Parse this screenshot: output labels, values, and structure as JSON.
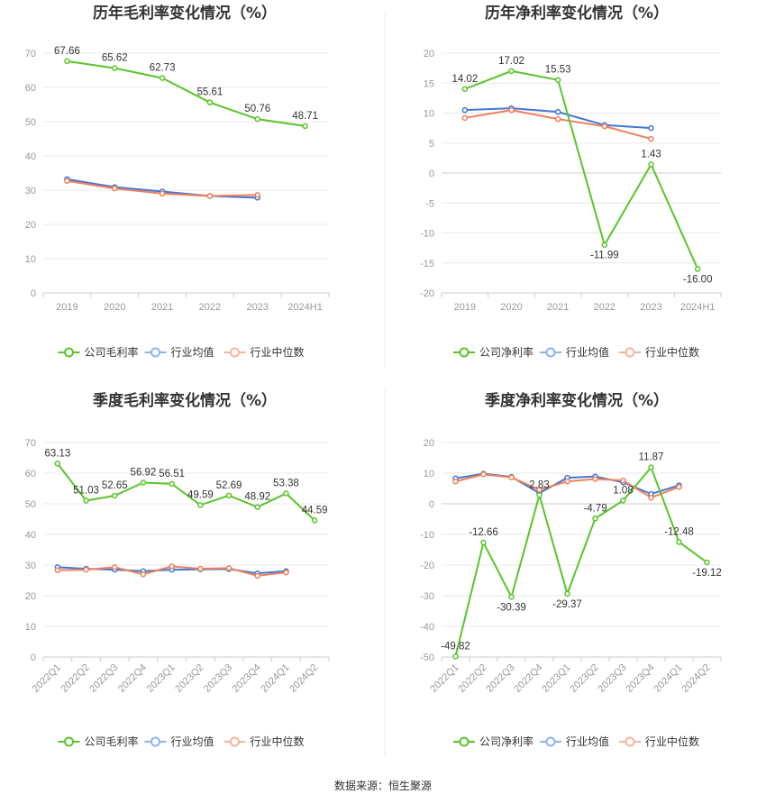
{
  "source": "数据来源：恒生聚源",
  "colors": {
    "company": "#5ac52a",
    "avg": "#4476d6",
    "median": "#f0805a",
    "legend_avg": "#8fb2ef",
    "legend_median": "#f7b49a"
  },
  "chart_data": [
    {
      "type": "line",
      "title": "历年毛利率变化情况（%）",
      "categories": [
        "2019",
        "2020",
        "2021",
        "2022",
        "2023",
        "2024H1"
      ],
      "ylim": [
        0,
        70
      ],
      "yticks": [
        0,
        10,
        20,
        30,
        40,
        50,
        60,
        70
      ],
      "grid": true,
      "legend_position": "bottom",
      "rotate_x": false,
      "series": [
        {
          "name": "公司毛利率",
          "role": "company",
          "values": [
            67.66,
            65.62,
            62.73,
            55.61,
            50.76,
            48.71
          ],
          "labels": [
            "67.66",
            "65.62",
            "62.73",
            "55.61",
            "50.76",
            "48.71"
          ]
        },
        {
          "name": "行业均值",
          "role": "avg",
          "values": [
            33.2,
            30.9,
            29.6,
            28.3,
            27.8,
            null
          ]
        },
        {
          "name": "行业中位数",
          "role": "median",
          "values": [
            32.7,
            30.5,
            29.0,
            28.3,
            28.6,
            null
          ]
        }
      ]
    },
    {
      "type": "line",
      "title": "历年净利率变化情况（%）",
      "categories": [
        "2019",
        "2020",
        "2021",
        "2022",
        "2023",
        "2024H1"
      ],
      "ylim": [
        -20,
        20
      ],
      "yticks": [
        -20,
        -15,
        -10,
        -5,
        0,
        5,
        10,
        15,
        20
      ],
      "grid": true,
      "legend_position": "bottom",
      "rotate_x": false,
      "series": [
        {
          "name": "公司净利率",
          "role": "company",
          "values": [
            14.02,
            17.02,
            15.53,
            -11.99,
            1.43,
            -16.0
          ],
          "labels": [
            "14.02",
            "17.02",
            "15.53",
            "-11.99",
            "1.43",
            "-16.00"
          ]
        },
        {
          "name": "行业均值",
          "role": "avg",
          "values": [
            10.5,
            10.8,
            10.2,
            8.0,
            7.5,
            null
          ]
        },
        {
          "name": "行业中位数",
          "role": "median",
          "values": [
            9.2,
            10.5,
            9.0,
            7.8,
            5.7,
            null
          ]
        }
      ]
    },
    {
      "type": "line",
      "title": "季度毛利率变化情况（%）",
      "categories": [
        "2022Q1",
        "2022Q2",
        "2022Q3",
        "2022Q4",
        "2023Q1",
        "2023Q2",
        "2023Q3",
        "2023Q4",
        "2024Q1",
        "2024Q2"
      ],
      "ylim": [
        0,
        70
      ],
      "yticks": [
        0,
        10,
        20,
        30,
        40,
        50,
        60,
        70
      ],
      "grid": true,
      "legend_position": "bottom",
      "rotate_x": true,
      "series": [
        {
          "name": "公司毛利率",
          "role": "company",
          "values": [
            63.13,
            51.03,
            52.65,
            56.92,
            56.51,
            49.59,
            52.69,
            48.92,
            53.38,
            44.59
          ],
          "labels": [
            "63.13",
            "51.03",
            "52.65",
            "56.92",
            "56.51",
            "49.59",
            "52.69",
            "48.92",
            "53.38",
            "44.59"
          ]
        },
        {
          "name": "行业均值",
          "role": "avg",
          "values": [
            29.3,
            28.8,
            28.5,
            28.0,
            28.5,
            28.6,
            28.7,
            27.3,
            28.0,
            null
          ]
        },
        {
          "name": "行业中位数",
          "role": "median",
          "values": [
            28.3,
            28.5,
            29.3,
            27.0,
            29.6,
            28.8,
            29.0,
            26.5,
            27.6,
            null
          ]
        }
      ]
    },
    {
      "type": "line",
      "title": "季度净利率变化情况（%）",
      "categories": [
        "2022Q1",
        "2022Q2",
        "2022Q3",
        "2022Q4",
        "2023Q1",
        "2023Q2",
        "2023Q3",
        "2023Q4",
        "2024Q1",
        "2024Q2"
      ],
      "ylim": [
        -50,
        20
      ],
      "yticks": [
        -50,
        -40,
        -30,
        -20,
        -10,
        0,
        10,
        20
      ],
      "grid": true,
      "legend_position": "bottom",
      "rotate_x": true,
      "series": [
        {
          "name": "公司净利率",
          "role": "company",
          "values": [
            -49.82,
            -12.66,
            -30.39,
            2.83,
            -29.37,
            -4.79,
            1.08,
            11.87,
            -12.48,
            -19.12
          ],
          "labels": [
            "-49.82",
            "-12.66",
            "-30.39",
            "2.83",
            "-29.37",
            "-4.79",
            "1.08",
            "11.87",
            "-12.48",
            "-19.12"
          ]
        },
        {
          "name": "行业均值",
          "role": "avg",
          "values": [
            8.3,
            9.8,
            8.8,
            3.5,
            8.5,
            8.9,
            7.0,
            3.2,
            6.0,
            null
          ]
        },
        {
          "name": "行业中位数",
          "role": "median",
          "values": [
            7.3,
            9.6,
            8.6,
            4.6,
            7.3,
            8.1,
            7.6,
            2.0,
            5.5,
            null
          ]
        }
      ]
    }
  ]
}
